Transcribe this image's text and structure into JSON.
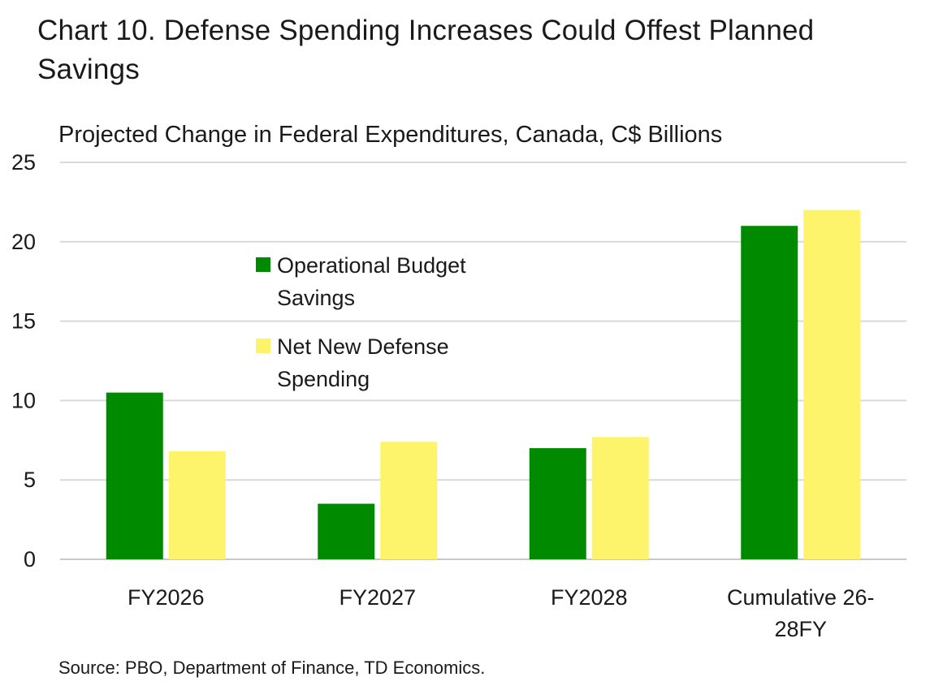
{
  "chart_data": {
    "type": "bar",
    "title": "Chart 10. Defense Spending Increases Could Offest Planned Savings",
    "subtitle": "Projected Change in Federal Expenditures, Canada, C$ Billions",
    "source": "Source: PBO, Department of Finance, TD Economics.",
    "categories": [
      [
        "FY2026"
      ],
      [
        "FY2027"
      ],
      [
        "FY2028"
      ],
      [
        "Cumulative 26-",
        "28FY"
      ]
    ],
    "series": [
      {
        "name_lines": [
          "Operational Budget",
          "Savings"
        ],
        "color": "#008a00",
        "values": [
          10.5,
          3.5,
          7.0,
          21.0
        ]
      },
      {
        "name_lines": [
          "Net New Defense",
          "Spending"
        ],
        "color": "#fdf46b",
        "values": [
          6.8,
          7.4,
          7.7,
          22.0
        ]
      }
    ],
    "ylim": [
      0,
      25
    ],
    "yticks": [
      0,
      5,
      10,
      15,
      20,
      25
    ],
    "xlabel": "",
    "ylabel": "",
    "grid": true,
    "legend": "upper-left inside plot"
  }
}
